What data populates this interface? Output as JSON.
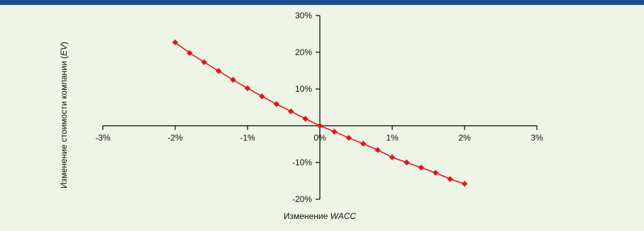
{
  "chart_data": {
    "type": "line",
    "title": "",
    "xlabel_prefix": "Изменение ",
    "xlabel_italic": "WACC",
    "ylabel_prefix": "Изменение стоимости компании (",
    "ylabel_italic": "EV",
    "ylabel_suffix": ")",
    "xlim": [
      -3,
      3
    ],
    "ylim": [
      -20,
      30
    ],
    "x_ticks": [
      -3,
      -2,
      -1,
      0,
      1,
      2,
      3
    ],
    "x_tick_labels": [
      "-3%",
      "-2%",
      "-1%",
      "0%",
      "1%",
      "2%",
      "3%"
    ],
    "y_ticks": [
      30,
      20,
      10,
      -10,
      -20
    ],
    "y_tick_labels": [
      "30%",
      "20%",
      "10%",
      "-10%",
      "-20%"
    ],
    "grid": false,
    "legend": "none",
    "series": [
      {
        "color": "#e0161f",
        "marker": "diamond",
        "points": [
          {
            "x": -2.0,
            "y": 22.7
          },
          {
            "x": -1.8,
            "y": 19.8
          },
          {
            "x": -1.6,
            "y": 17.3
          },
          {
            "x": -1.4,
            "y": 14.9
          },
          {
            "x": -1.2,
            "y": 12.5
          },
          {
            "x": -1.0,
            "y": 10.2
          },
          {
            "x": -0.8,
            "y": 8.0
          },
          {
            "x": -0.6,
            "y": 5.9
          },
          {
            "x": -0.4,
            "y": 3.9
          },
          {
            "x": -0.2,
            "y": 1.9
          },
          {
            "x": 0.0,
            "y": 0.0
          },
          {
            "x": 0.2,
            "y": -1.6
          },
          {
            "x": 0.4,
            "y": -3.3
          },
          {
            "x": 0.6,
            "y": -4.9
          },
          {
            "x": 0.8,
            "y": -6.6
          },
          {
            "x": 1.0,
            "y": -8.6
          },
          {
            "x": 1.2,
            "y": -10.0
          },
          {
            "x": 1.4,
            "y": -11.4
          },
          {
            "x": 1.6,
            "y": -12.8
          },
          {
            "x": 1.8,
            "y": -14.5
          },
          {
            "x": 2.0,
            "y": -15.8
          }
        ]
      }
    ]
  }
}
